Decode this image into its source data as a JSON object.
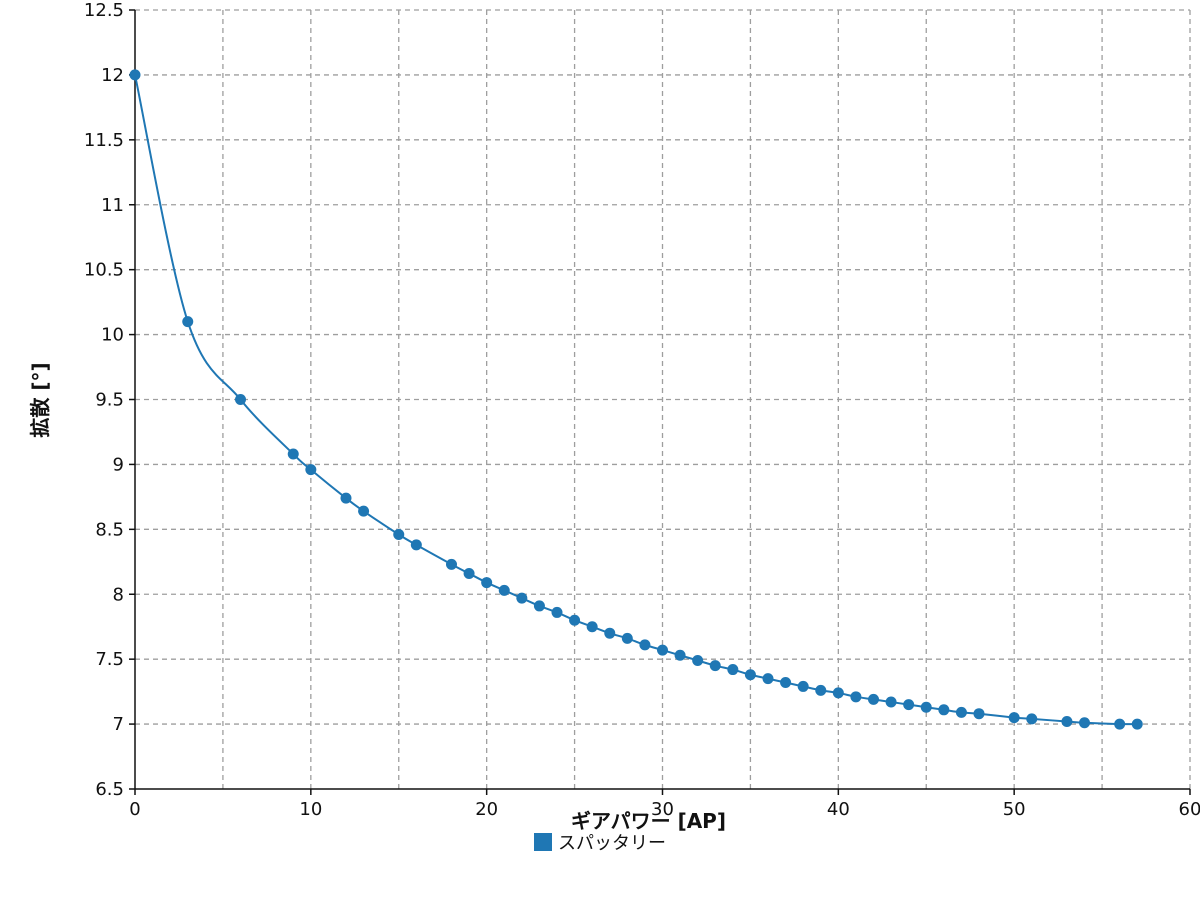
{
  "chart_data": {
    "type": "line",
    "title": "",
    "xlabel": "ギアパワー [AP]",
    "ylabel": "拡散 [°]",
    "xlim": [
      0,
      60
    ],
    "ylim": [
      6.5,
      12.5
    ],
    "x_ticks": [
      0,
      10,
      20,
      30,
      40,
      50,
      60
    ],
    "y_ticks": [
      6.5,
      7,
      7.5,
      8,
      8.5,
      9,
      9.5,
      10,
      10.5,
      11,
      11.5,
      12,
      12.5
    ],
    "grid": true,
    "legend_position": "bottom-center",
    "series": [
      {
        "name": "スパッタリー",
        "color": "#1f77b4",
        "x": [
          0,
          3,
          6,
          9,
          10,
          12,
          13,
          15,
          16,
          18,
          19,
          20,
          21,
          22,
          23,
          24,
          25,
          26,
          27,
          28,
          29,
          30,
          31,
          32,
          33,
          34,
          35,
          36,
          37,
          38,
          39,
          40,
          41,
          42,
          43,
          44,
          45,
          46,
          47,
          48,
          50,
          51,
          53,
          54,
          56,
          57
        ],
        "y": [
          12.0,
          10.1,
          9.5,
          9.08,
          8.96,
          8.74,
          8.64,
          8.46,
          8.38,
          8.23,
          8.16,
          8.09,
          8.03,
          7.97,
          7.91,
          7.86,
          7.8,
          7.75,
          7.7,
          7.66,
          7.61,
          7.57,
          7.53,
          7.49,
          7.45,
          7.42,
          7.38,
          7.35,
          7.32,
          7.29,
          7.26,
          7.24,
          7.21,
          7.19,
          7.17,
          7.15,
          7.13,
          7.11,
          7.09,
          7.08,
          7.05,
          7.04,
          7.02,
          7.01,
          7.0,
          7.0
        ]
      }
    ]
  }
}
